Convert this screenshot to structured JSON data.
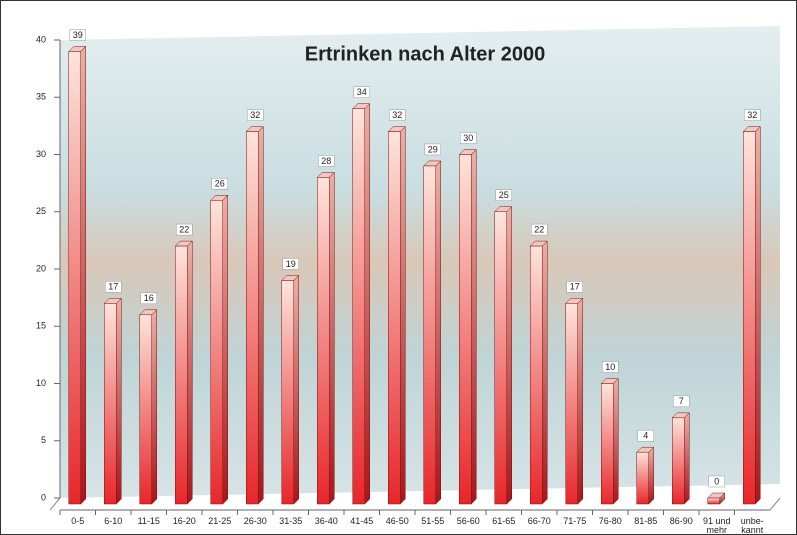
{
  "chart_data": {
    "type": "bar",
    "title": "Ertrinken nach Alter 2000",
    "categories": [
      "0-5",
      "6-10",
      "11-15",
      "16-20",
      "21-25",
      "26-30",
      "31-35",
      "36-40",
      "41-45",
      "46-50",
      "51-55",
      "56-60",
      "61-65",
      "66-70",
      "71-75",
      "76-80",
      "81-85",
      "86-90",
      "91 und mehr",
      "unbe-kannt"
    ],
    "values": [
      39,
      17,
      16,
      22,
      26,
      32,
      19,
      28,
      34,
      32,
      29,
      30,
      25,
      22,
      17,
      10,
      4,
      7,
      0,
      32
    ],
    "color": "#e8262a",
    "ylim": [
      0,
      40
    ],
    "yticks": [
      0,
      5,
      10,
      15,
      20,
      25,
      30,
      35,
      40
    ]
  }
}
